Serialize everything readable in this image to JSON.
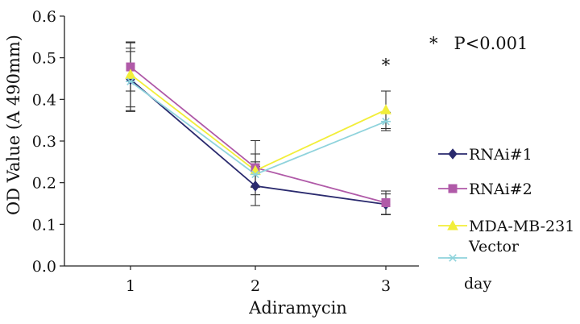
{
  "chart_data": {
    "type": "line",
    "title": "",
    "xlabel": "Adiramycin",
    "xlabel_note": "day",
    "ylabel": "OD Value (A 490mm)",
    "categories": [
      "1",
      "2",
      "3"
    ],
    "x": [
      1,
      2,
      3
    ],
    "ylim": [
      0,
      0.6
    ],
    "yticks": [
      "0.0",
      "0.1",
      "0.2",
      "0.3",
      "0.4",
      "0.5",
      "0.6"
    ],
    "grid": false,
    "legend_position": "right",
    "annotation": "*   P<0.001",
    "significance_marker": "*",
    "series": [
      {
        "name": "RNAi#1",
        "color": "#2a2a6e",
        "marker": "diamond",
        "values": [
          0.448,
          0.192,
          0.148
        ],
        "err": [
          0.075,
          0.047,
          0.025
        ]
      },
      {
        "name": "RNAi#2",
        "color": "#b05aa8",
        "marker": "square",
        "values": [
          0.478,
          0.236,
          0.152
        ],
        "err": [
          0.058,
          0.065,
          0.028
        ]
      },
      {
        "name": "MDA-MB-231",
        "color": "#f2ee3a",
        "marker": "triangle",
        "values": [
          0.46,
          0.229,
          0.375
        ],
        "err": [
          0.078,
          0.04,
          0.045
        ]
      },
      {
        "name": "Vector",
        "color": "#8fd3dc",
        "marker": "asterisk",
        "values": [
          0.443,
          0.22,
          0.347
        ],
        "err": [
          0.072,
          0.03,
          0.022
        ]
      }
    ]
  }
}
